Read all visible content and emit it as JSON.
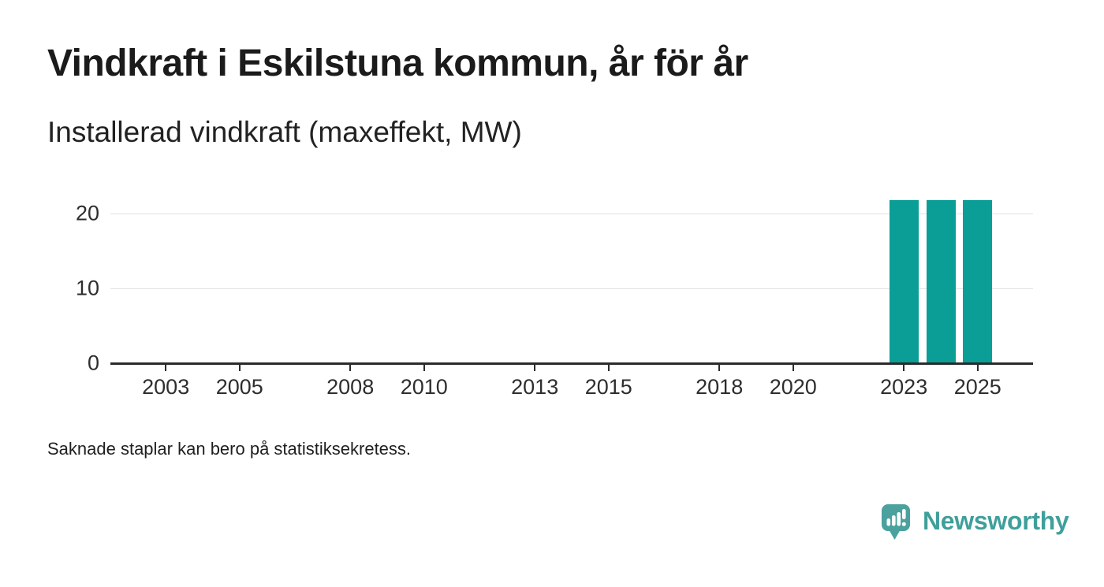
{
  "header": {
    "title": "Vindkraft i Eskilstuna kommun, år för år",
    "subtitle": "Installerad vindkraft (maxeffekt, MW)"
  },
  "footnote": "Saknade staplar kan bero på statistiksekretess.",
  "branding": {
    "wordmark": "Newsworthy",
    "icon": "bar-chart-speech-bubble-icon",
    "icon_color": "#4aa19e",
    "text_color": "#3f9f9b"
  },
  "colors": {
    "bar": "#0a9e96",
    "axis": "#2b2b2b",
    "grid": "#e2e2e2",
    "text": "#1b1b1b"
  },
  "chart_data": {
    "type": "bar",
    "title": "Vindkraft i Eskilstuna kommun, år för år",
    "subtitle": "Installerad vindkraft (maxeffekt, MW)",
    "unit": "MW",
    "x": [
      2023,
      2024,
      2025
    ],
    "values": [
      21.8,
      21.8,
      21.8
    ],
    "x_domain": [
      2002,
      2026
    ],
    "xticks": [
      2003,
      2005,
      2008,
      2010,
      2013,
      2015,
      2018,
      2020,
      2023,
      2025
    ],
    "ylim": [
      0,
      24
    ],
    "yticks": [
      0,
      10,
      20
    ],
    "grid": "horizontal",
    "legend": "none",
    "bar_color": "#0a9e96",
    "footnote": "Saknade staplar kan bero på statistiksekretess."
  }
}
